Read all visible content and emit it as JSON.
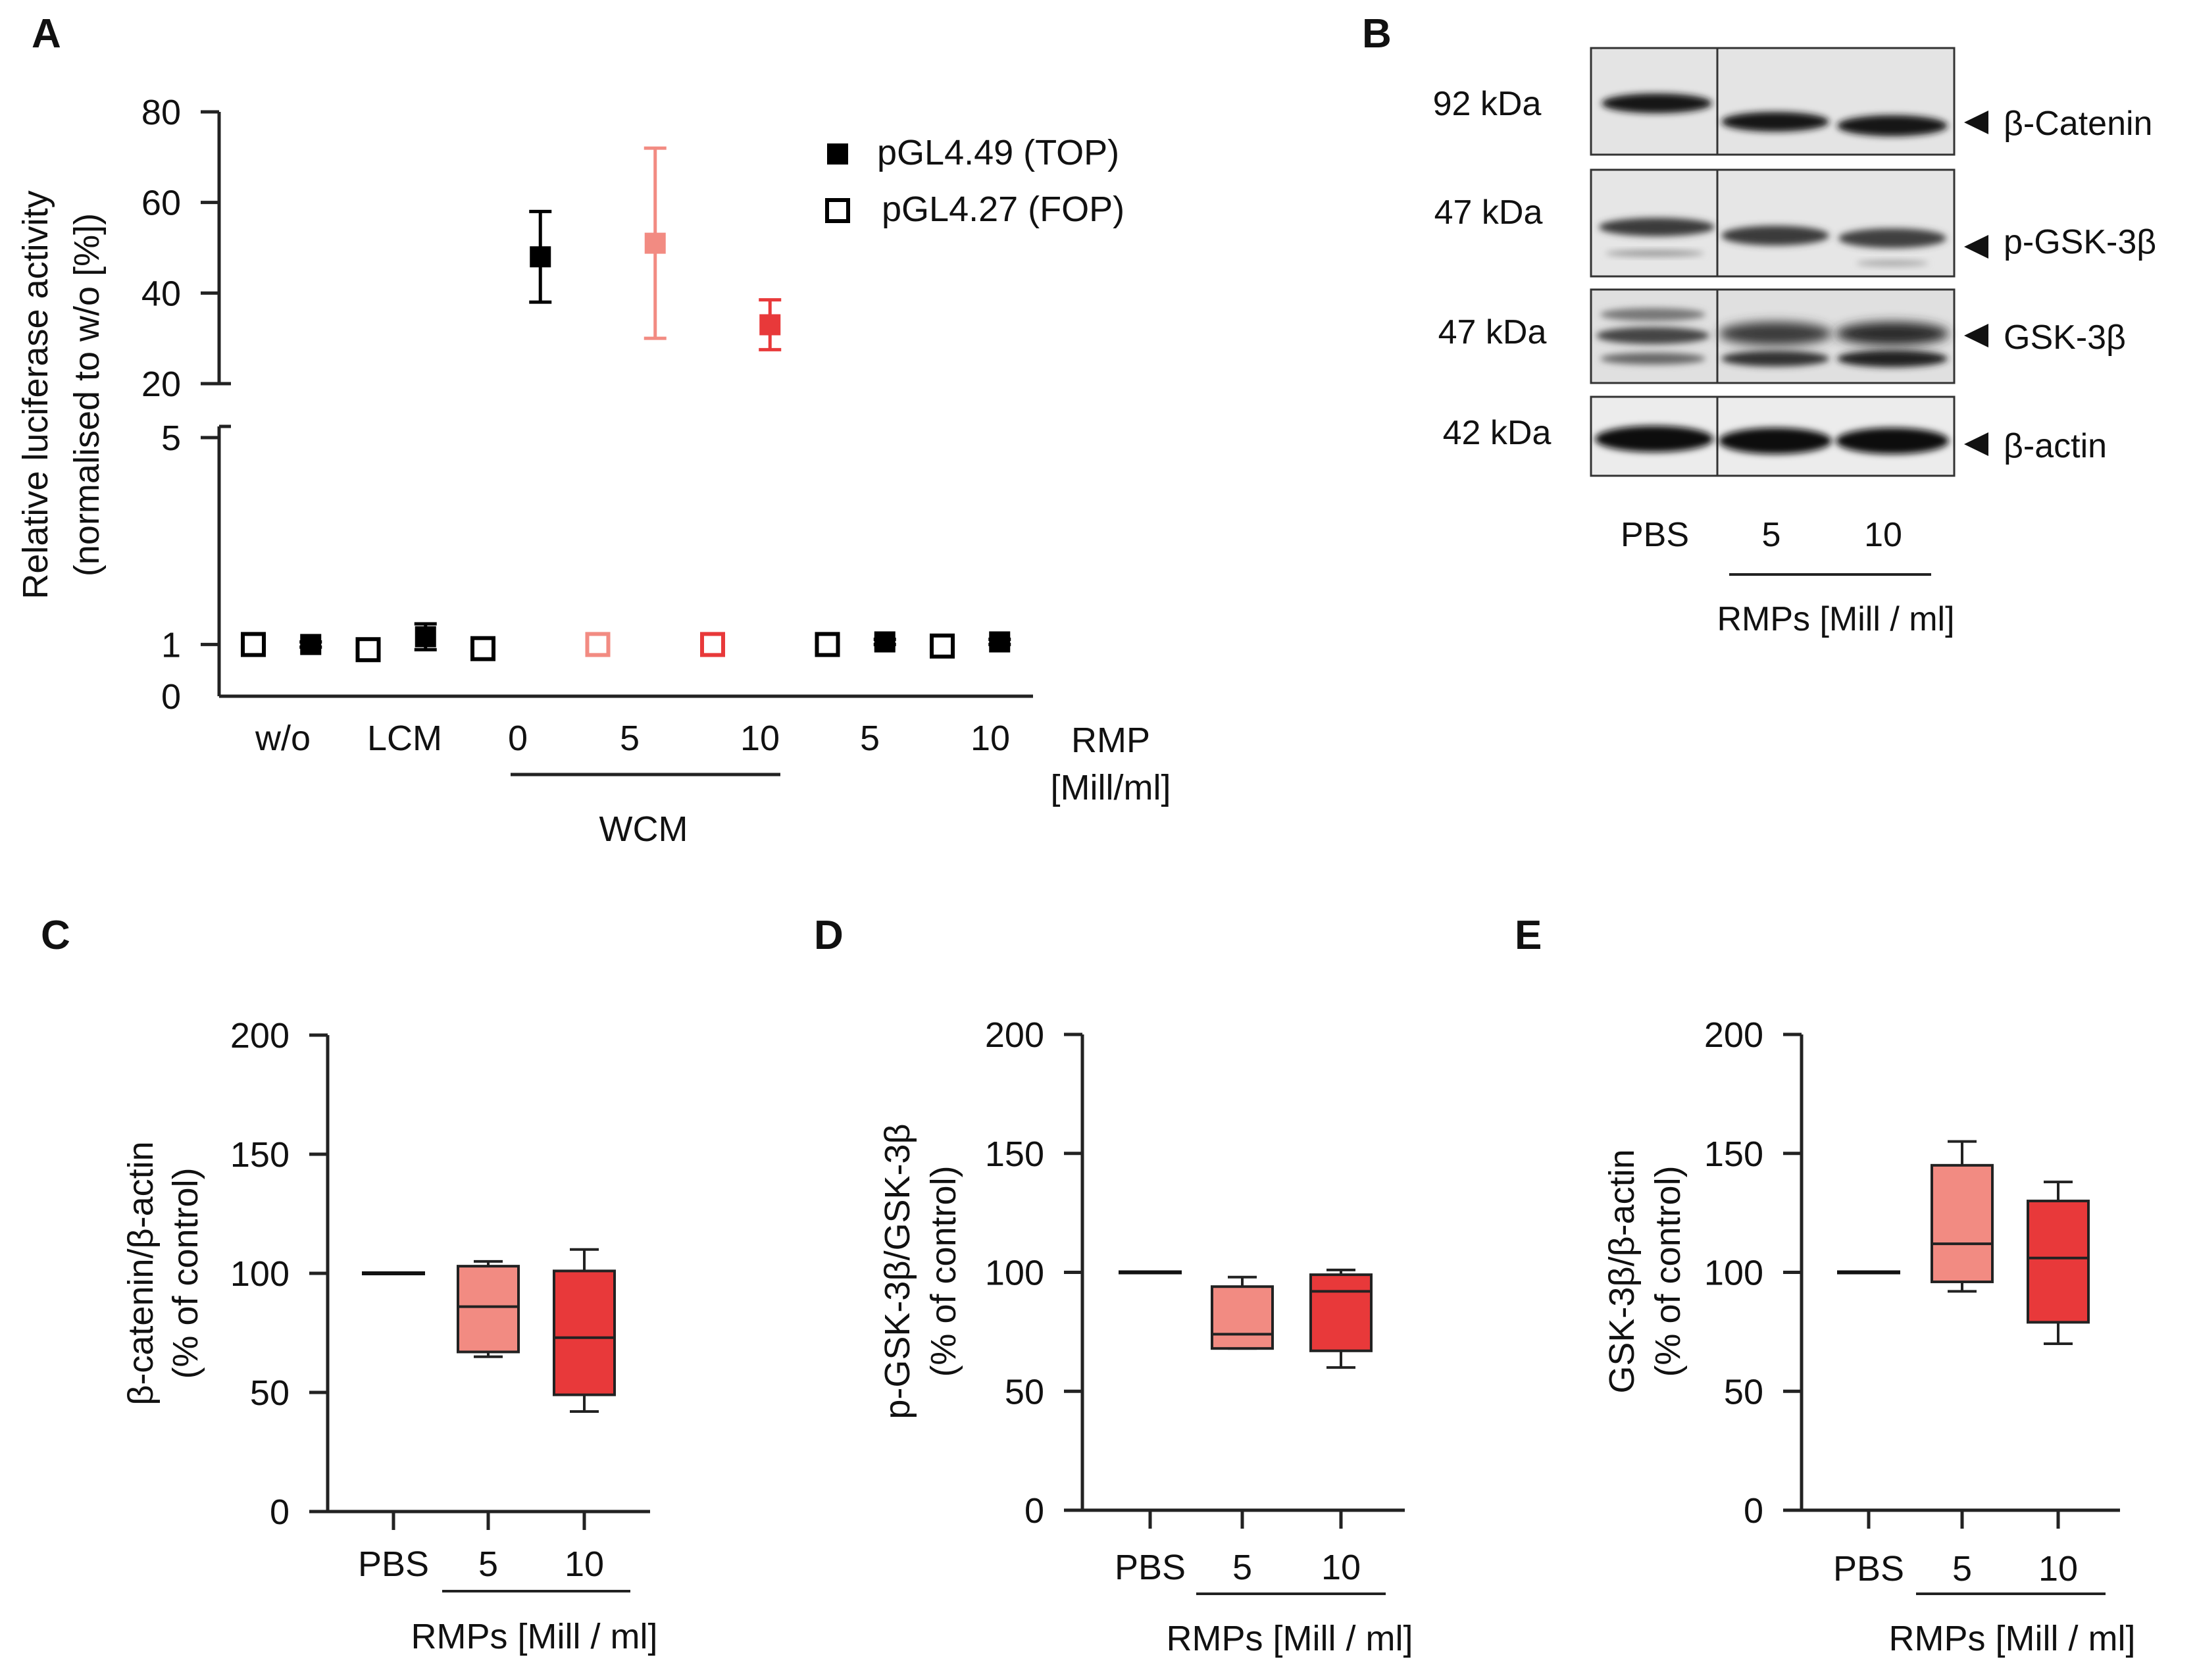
{
  "panels": {
    "A": "A",
    "B": "B",
    "C": "C",
    "D": "D",
    "E": "E"
  },
  "chart_data": [
    {
      "panel": "A",
      "type": "scatter",
      "title": "",
      "ylabel_line1": "Relative luciferase activity",
      "ylabel_line2": "(normalised to w/o [%])",
      "ylim_lower": [
        0,
        5
      ],
      "ylim_upper": [
        20,
        80
      ],
      "yticks_lower": [
        "0",
        "1",
        "5"
      ],
      "yticks_upper": [
        "20",
        "40",
        "60",
        "80"
      ],
      "xlabels": [
        "w/o",
        "LCM",
        "0",
        "5",
        "10",
        "5",
        "10"
      ],
      "x_unit_line1": "RMP",
      "x_unit_line2": "[Mill/ml]",
      "group_label": "WCM",
      "legend": [
        {
          "name": "pGL4.49 (TOP)",
          "marker": "filled"
        },
        {
          "name": "pGL4.27 (FOP)",
          "marker": "open"
        }
      ],
      "series": [
        {
          "name": "pGL4.49 (TOP)",
          "points": [
            {
              "x": 0.5,
              "y": 1.0,
              "err": 0.05,
              "color": "#000000"
            },
            {
              "x": 1.5,
              "y": 1.15,
              "err": 0.25,
              "color": "#000000"
            },
            {
              "x": 2.5,
              "y": 48,
              "err": 10,
              "color": "#000000"
            },
            {
              "x": 3.5,
              "y": 51,
              "err": 21,
              "color": "#f28b82"
            },
            {
              "x": 4.5,
              "y": 33,
              "err": 5.5,
              "color": "#e8393a"
            },
            {
              "x": 5.5,
              "y": 1.05,
              "err": 0.05,
              "color": "#000000"
            },
            {
              "x": 6.5,
              "y": 1.05,
              "err": 0.05,
              "color": "#000000"
            }
          ]
        },
        {
          "name": "pGL4.27 (FOP)",
          "points": [
            {
              "x": 0.0,
              "y": 1.0,
              "err": 0.08,
              "color": "#000000"
            },
            {
              "x": 1.0,
              "y": 0.9,
              "err": 0.08,
              "color": "#000000"
            },
            {
              "x": 2.0,
              "y": 0.92,
              "err": 0.08,
              "color": "#000000"
            },
            {
              "x": 3.0,
              "y": 1.0,
              "err": 0.1,
              "color": "#f28b82"
            },
            {
              "x": 4.0,
              "y": 1.0,
              "err": 0.1,
              "color": "#e8393a"
            },
            {
              "x": 5.0,
              "y": 1.0,
              "err": 0.1,
              "color": "#000000"
            },
            {
              "x": 6.0,
              "y": 0.97,
              "err": 0.08,
              "color": "#000000"
            }
          ]
        }
      ]
    },
    {
      "panel": "C",
      "type": "box",
      "ylabel_line1": "β-catenin/β-actin",
      "ylabel_line2": "(% of control)",
      "ylim": [
        0,
        200
      ],
      "yticks": [
        "0",
        "50",
        "100",
        "150",
        "200"
      ],
      "categories": [
        "PBS",
        "5",
        "10"
      ],
      "xlabel": "RMPs [Mill / ml]",
      "boxes": [
        {
          "min": 100,
          "q1": 100,
          "median": 100,
          "q3": 100,
          "max": 100,
          "color": "#000000"
        },
        {
          "min": 65,
          "q1": 67,
          "median": 86,
          "q3": 103,
          "max": 105,
          "color": "#f28b82"
        },
        {
          "min": 42,
          "q1": 49,
          "median": 73,
          "q3": 101,
          "max": 110,
          "color": "#e8393a"
        }
      ]
    },
    {
      "panel": "D",
      "type": "box",
      "ylabel_line1": "p-GSK-3β/GSK-3β",
      "ylabel_line2": "(% of control)",
      "ylim": [
        0,
        200
      ],
      "yticks": [
        "0",
        "50",
        "100",
        "150",
        "200"
      ],
      "categories": [
        "PBS",
        "5",
        "10"
      ],
      "xlabel": "RMPs [Mill / ml]",
      "boxes": [
        {
          "min": 100,
          "q1": 100,
          "median": 100,
          "q3": 100,
          "max": 100,
          "color": "#000000"
        },
        {
          "min": 68,
          "q1": 68,
          "median": 74,
          "q3": 94,
          "max": 98,
          "color": "#f28b82"
        },
        {
          "min": 60,
          "q1": 67,
          "median": 92,
          "q3": 99,
          "max": 101,
          "color": "#e8393a"
        }
      ]
    },
    {
      "panel": "E",
      "type": "box",
      "ylabel_line1": "GSK-3β/β-actin",
      "ylabel_line2": "(% of control)",
      "ylim": [
        0,
        200
      ],
      "yticks": [
        "0",
        "50",
        "100",
        "150",
        "200"
      ],
      "categories": [
        "PBS",
        "5",
        "10"
      ],
      "xlabel": "RMPs [Mill / ml]",
      "boxes": [
        {
          "min": 100,
          "q1": 100,
          "median": 100,
          "q3": 100,
          "max": 100,
          "color": "#000000"
        },
        {
          "min": 92,
          "q1": 96,
          "median": 112,
          "q3": 145,
          "max": 155,
          "color": "#f28b82"
        },
        {
          "min": 70,
          "q1": 79,
          "median": 106,
          "q3": 130,
          "max": 138,
          "color": "#e8393a"
        }
      ]
    }
  ],
  "western_blot": {
    "rows": [
      {
        "kda": "92 kDa",
        "protein": "β-Catenin"
      },
      {
        "kda": "47 kDa",
        "protein": "p-GSK-3β"
      },
      {
        "kda": "47 kDa",
        "protein": "GSK-3β"
      },
      {
        "kda": "42 kDa",
        "protein": "β-actin"
      }
    ],
    "lanes": [
      "PBS",
      "5",
      "10"
    ],
    "xlabel": "RMPs [Mill / ml]"
  }
}
